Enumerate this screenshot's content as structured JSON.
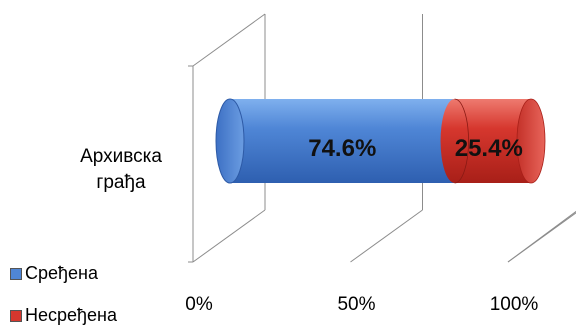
{
  "chart_data": {
    "type": "bar",
    "orientation": "horizontal",
    "stacked": "100%",
    "style": "3d-cylinder",
    "categories": [
      "Архивска грађа"
    ],
    "series": [
      {
        "name": "Сређена",
        "values": [
          74.6
        ],
        "label": "74.6%",
        "color": "#4f86d6"
      },
      {
        "name": "Несређена",
        "values": [
          25.4
        ],
        "label": "25.4%",
        "color": "#d6372e"
      }
    ],
    "x_ticks": [
      "0%",
      "50%",
      "100%"
    ],
    "xlim": [
      0,
      100
    ],
    "grid": true,
    "legend_position": "bottom-left"
  },
  "category_label_lines": [
    "Архивска",
    "грађа"
  ]
}
